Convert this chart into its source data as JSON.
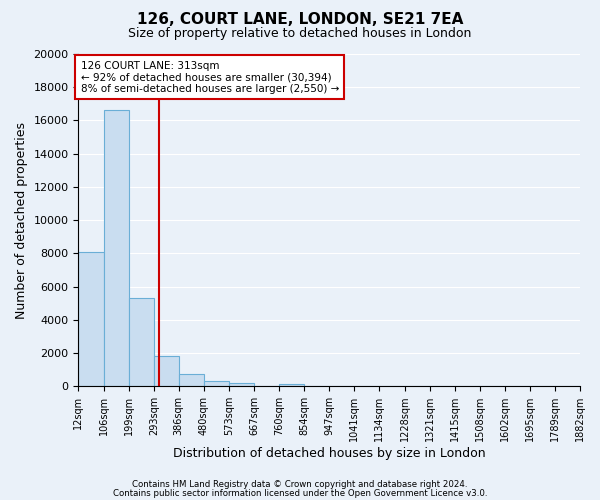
{
  "title": "126, COURT LANE, LONDON, SE21 7EA",
  "subtitle": "Size of property relative to detached houses in London",
  "xlabel": "Distribution of detached houses by size in London",
  "ylabel": "Number of detached properties",
  "bar_labels": [
    "12sqm",
    "106sqm",
    "199sqm",
    "293sqm",
    "386sqm",
    "480sqm",
    "573sqm",
    "667sqm",
    "760sqm",
    "854sqm",
    "947sqm",
    "1041sqm",
    "1134sqm",
    "1228sqm",
    "1321sqm",
    "1415sqm",
    "1508sqm",
    "1602sqm",
    "1695sqm",
    "1789sqm",
    "1882sqm"
  ],
  "bar_values": [
    8100,
    16600,
    5300,
    1800,
    750,
    300,
    180,
    0,
    150,
    0,
    0,
    0,
    0,
    0,
    0,
    0,
    0,
    0,
    0,
    0
  ],
  "bar_color": "#c9ddf0",
  "bar_edge_color": "#6aaed6",
  "property_line_x": 313,
  "property_line_color": "#cc0000",
  "annotation_text": "126 COURT LANE: 313sqm\n← 92% of detached houses are smaller (30,394)\n8% of semi-detached houses are larger (2,550) →",
  "annotation_box_color": "#ffffff",
  "annotation_box_edge_color": "#cc0000",
  "ylim": [
    0,
    20000
  ],
  "yticks": [
    0,
    2000,
    4000,
    6000,
    8000,
    10000,
    12000,
    14000,
    16000,
    18000,
    20000
  ],
  "bin_edges": [
    12,
    106,
    199,
    293,
    386,
    480,
    573,
    667,
    760,
    854,
    947,
    1041,
    1134,
    1228,
    1321,
    1415,
    1508,
    1602,
    1695,
    1789,
    1882
  ],
  "footer_text1": "Contains HM Land Registry data © Crown copyright and database right 2024.",
  "footer_text2": "Contains public sector information licensed under the Open Government Licence v3.0.",
  "background_color": "#eaf1f9",
  "plot_background_color": "#eaf1f9",
  "grid_color": "#ffffff"
}
